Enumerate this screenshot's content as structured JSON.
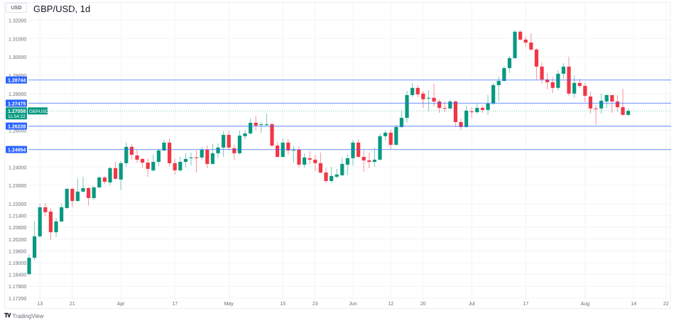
{
  "header": {
    "currency": "USD",
    "title": "GBP/USD, 1d"
  },
  "brand": {
    "logo_mark": "TV",
    "name": "TradingView"
  },
  "colors": {
    "up": "#089981",
    "down": "#f23645",
    "level_line": "#2962ff",
    "grid": "#f2f3f5",
    "axis_text": "#6a6d78"
  },
  "current_price": {
    "value": "1.27058",
    "countdown": "11:54:22",
    "symbol": "GBPUSD"
  },
  "chart_data": {
    "type": "candlestick",
    "title": "GBP/USD, 1d",
    "y_ticks": [
      "1.32000",
      "1.31000",
      "1.30000",
      "1.29000",
      "1.28000",
      "1.26000",
      "1.24000",
      "1.23000",
      "1.22000",
      "1.21400",
      "1.20800",
      "1.20200",
      "1.19600",
      "1.19000",
      "1.18400",
      "1.17800",
      "1.17200"
    ],
    "x_ticks": [
      {
        "label": "13",
        "bar": 2
      },
      {
        "label": "21",
        "bar": 8
      },
      {
        "label": "Apr",
        "bar": 17
      },
      {
        "label": "17",
        "bar": 27
      },
      {
        "label": "May",
        "bar": 37
      },
      {
        "label": "15",
        "bar": 47
      },
      {
        "label": "23",
        "bar": 53
      },
      {
        "label": "Jun",
        "bar": 60
      },
      {
        "label": "12",
        "bar": 67
      },
      {
        "label": "20",
        "bar": 73
      },
      {
        "label": "Jul",
        "bar": 82
      },
      {
        "label": "17",
        "bar": 92
      },
      {
        "label": "Aug",
        "bar": 103
      },
      {
        "label": "14",
        "bar": 112
      },
      {
        "label": "22",
        "bar": 118
      }
    ],
    "levels": [
      "1.28744",
      "1.27475",
      "1.26228",
      "1.24954"
    ],
    "grid": true,
    "ohlc": [
      [
        1.1842,
        1.1943,
        1.1835,
        1.1925
      ],
      [
        1.1925,
        1.2113,
        1.1911,
        1.2034
      ],
      [
        1.2034,
        1.22,
        1.2027,
        1.2182
      ],
      [
        1.2182,
        1.2204,
        1.2135,
        1.2157
      ],
      [
        1.216,
        1.2178,
        1.2016,
        1.2055
      ],
      [
        1.2055,
        1.2128,
        1.203,
        1.211
      ],
      [
        1.211,
        1.22,
        1.2106,
        1.2182
      ],
      [
        1.2178,
        1.2285,
        1.2175,
        1.2281
      ],
      [
        1.2281,
        1.2289,
        1.2182,
        1.2215
      ],
      [
        1.2215,
        1.2339,
        1.2212,
        1.2266
      ],
      [
        1.2266,
        1.2347,
        1.2262,
        1.2285
      ],
      [
        1.2285,
        1.2293,
        1.2189,
        1.2231
      ],
      [
        1.2231,
        1.2297,
        1.2219,
        1.2289
      ],
      [
        1.2289,
        1.2351,
        1.2285,
        1.2343
      ],
      [
        1.2343,
        1.2351,
        1.2308,
        1.232
      ],
      [
        1.2316,
        1.2401,
        1.2301,
        1.2394
      ],
      [
        1.2394,
        1.2428,
        1.2332,
        1.2336
      ],
      [
        1.2332,
        1.2432,
        1.2274,
        1.2421
      ],
      [
        1.2421,
        1.2533,
        1.2401,
        1.251
      ],
      [
        1.251,
        1.2525,
        1.244,
        1.2467
      ],
      [
        1.2463,
        1.2494,
        1.2424,
        1.244
      ],
      [
        1.2444,
        1.2448,
        1.2397,
        1.2424
      ],
      [
        1.2424,
        1.2448,
        1.2347,
        1.239
      ],
      [
        1.2382,
        1.2467,
        1.2374,
        1.2428
      ],
      [
        1.2428,
        1.2502,
        1.2405,
        1.249
      ],
      [
        1.249,
        1.2548,
        1.2486,
        1.2533
      ],
      [
        1.2533,
        1.2556,
        1.2401,
        1.2421
      ],
      [
        1.2421,
        1.2444,
        1.2359,
        1.2382
      ],
      [
        1.2382,
        1.2455,
        1.2374,
        1.2428
      ],
      [
        1.2428,
        1.2475,
        1.2397,
        1.2444
      ],
      [
        1.2448,
        1.2479,
        1.2409,
        1.2452
      ],
      [
        1.2452,
        1.249,
        1.237,
        1.2448
      ],
      [
        1.2452,
        1.251,
        1.244,
        1.2494
      ],
      [
        1.2494,
        1.2517,
        1.2394,
        1.2417
      ],
      [
        1.2417,
        1.2525,
        1.2413,
        1.2475
      ],
      [
        1.2475,
        1.2529,
        1.2448,
        1.2506
      ],
      [
        1.2506,
        1.2595,
        1.2455,
        1.2575
      ],
      [
        1.2575,
        1.2599,
        1.249,
        1.2506
      ],
      [
        1.2502,
        1.2521,
        1.244,
        1.2475
      ],
      [
        1.2475,
        1.2599,
        1.2467,
        1.2571
      ],
      [
        1.2568,
        1.2599,
        1.2552,
        1.2583
      ],
      [
        1.2583,
        1.2664,
        1.2575,
        1.2641
      ],
      [
        1.2641,
        1.268,
        1.2599,
        1.2626
      ],
      [
        1.263,
        1.2645,
        1.2587,
        1.2633
      ],
      [
        1.263,
        1.2691,
        1.2622,
        1.2633
      ],
      [
        1.2633,
        1.2641,
        1.251,
        1.2517
      ],
      [
        1.2517,
        1.2537,
        1.2452,
        1.2455
      ],
      [
        1.2455,
        1.2556,
        1.2452,
        1.2533
      ],
      [
        1.2533,
        1.2552,
        1.2467,
        1.249
      ],
      [
        1.249,
        1.2517,
        1.2424,
        1.2494
      ],
      [
        1.2494,
        1.251,
        1.2397,
        1.2413
      ],
      [
        1.2413,
        1.2475,
        1.2397,
        1.2452
      ],
      [
        1.2448,
        1.2486,
        1.2417,
        1.244
      ],
      [
        1.244,
        1.2467,
        1.2378,
        1.2421
      ],
      [
        1.2421,
        1.2479,
        1.2363,
        1.237
      ],
      [
        1.237,
        1.2394,
        1.2312,
        1.2324
      ],
      [
        1.2324,
        1.2401,
        1.2312,
        1.2351
      ],
      [
        1.2347,
        1.239,
        1.2339,
        1.2359
      ],
      [
        1.2355,
        1.2452,
        1.2351,
        1.2417
      ],
      [
        1.2413,
        1.2467,
        1.2355,
        1.2448
      ],
      [
        1.2448,
        1.2548,
        1.2409,
        1.2533
      ],
      [
        1.2533,
        1.2552,
        1.2452,
        1.2455
      ],
      [
        1.2455,
        1.249,
        1.2374,
        1.2436
      ],
      [
        1.2436,
        1.2479,
        1.2394,
        1.2428
      ],
      [
        1.2428,
        1.2506,
        1.2401,
        1.244
      ],
      [
        1.244,
        1.2583,
        1.2436,
        1.2568
      ],
      [
        1.2568,
        1.2599,
        1.2544,
        1.2587
      ],
      [
        1.2587,
        1.2606,
        1.2498,
        1.2521
      ],
      [
        1.2521,
        1.263,
        1.2517,
        1.2618
      ],
      [
        1.2618,
        1.2707,
        1.2614,
        1.2668
      ],
      [
        1.2668,
        1.2815,
        1.2641,
        1.2792
      ],
      [
        1.2792,
        1.2858,
        1.278,
        1.2831
      ],
      [
        1.2831,
        1.2846,
        1.278,
        1.2796
      ],
      [
        1.28,
        1.2815,
        1.2722,
        1.2769
      ],
      [
        1.2773,
        1.2819,
        1.2703,
        1.2777
      ],
      [
        1.2777,
        1.2854,
        1.273,
        1.2757
      ],
      [
        1.2757,
        1.2769,
        1.2695,
        1.2722
      ],
      [
        1.2722,
        1.2757,
        1.2699,
        1.2719
      ],
      [
        1.2719,
        1.2769,
        1.2715,
        1.2757
      ],
      [
        1.2757,
        1.2761,
        1.2618,
        1.2645
      ],
      [
        1.2645,
        1.2664,
        1.2602,
        1.2618
      ],
      [
        1.2618,
        1.2734,
        1.2614,
        1.2707
      ],
      [
        1.2703,
        1.2726,
        1.2668,
        1.2699
      ],
      [
        1.2699,
        1.2746,
        1.2691,
        1.2722
      ],
      [
        1.2722,
        1.2734,
        1.2695,
        1.2711
      ],
      [
        1.2711,
        1.2792,
        1.2684,
        1.2746
      ],
      [
        1.2746,
        1.2858,
        1.2738,
        1.2846
      ],
      [
        1.2846,
        1.2893,
        1.2757,
        1.2869
      ],
      [
        1.2869,
        1.2951,
        1.2866,
        1.2939
      ],
      [
        1.2939,
        1.3005,
        1.2912,
        1.2993
      ],
      [
        1.2993,
        1.3144,
        1.2989,
        1.3137
      ],
      [
        1.3137,
        1.3144,
        1.309,
        1.3094
      ],
      [
        1.3094,
        1.3113,
        1.3055,
        1.3078
      ],
      [
        1.3078,
        1.3129,
        1.3032,
        1.304
      ],
      [
        1.304,
        1.3048,
        1.2877,
        1.2947
      ],
      [
        1.2947,
        1.297,
        1.2854,
        1.2877
      ],
      [
        1.2877,
        1.2912,
        1.2823,
        1.2862
      ],
      [
        1.2862,
        1.2889,
        1.2804,
        1.2831
      ],
      [
        1.2831,
        1.2928,
        1.2819,
        1.2908
      ],
      [
        1.2908,
        1.2966,
        1.2881,
        1.2947
      ],
      [
        1.2947,
        1.3001,
        1.2788,
        1.28
      ],
      [
        1.28,
        1.2897,
        1.2777,
        1.2858
      ],
      [
        1.2858,
        1.2881,
        1.2831,
        1.2842
      ],
      [
        1.2842,
        1.2858,
        1.2753,
        1.2788
      ],
      [
        1.2784,
        1.2811,
        1.2691,
        1.2719
      ],
      [
        1.2719,
        1.2738,
        1.263,
        1.2715
      ],
      [
        1.2719,
        1.28,
        1.2691,
        1.2761
      ],
      [
        1.2757,
        1.2796,
        1.2722,
        1.2792
      ],
      [
        1.2792,
        1.2792,
        1.2695,
        1.2757
      ],
      [
        1.2757,
        1.2792,
        1.2703,
        1.2726
      ],
      [
        1.2726,
        1.2827,
        1.268,
        1.2684
      ],
      [
        1.2684,
        1.2722,
        1.268,
        1.27058
      ]
    ]
  }
}
